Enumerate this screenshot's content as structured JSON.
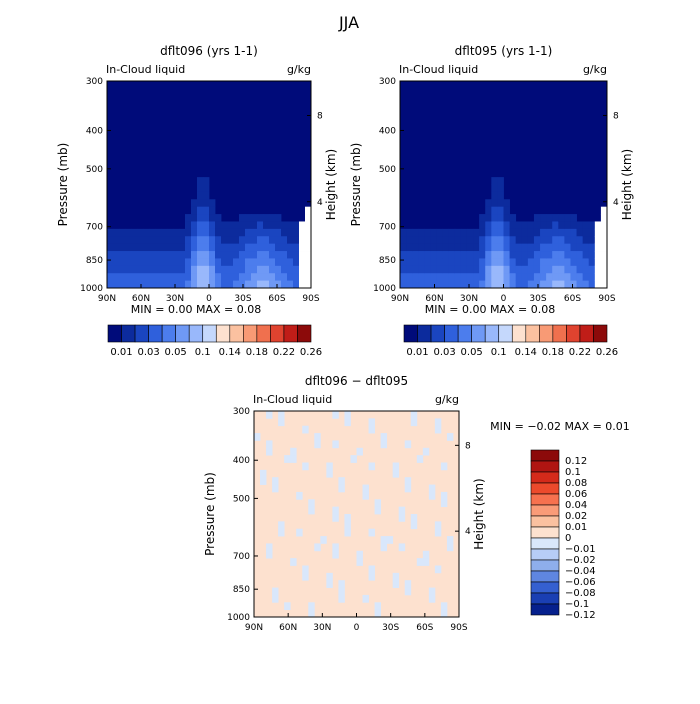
{
  "title": "JJA",
  "colors": {
    "cb_seq": [
      "#000b7a",
      "#0c2b9d",
      "#1a45c0",
      "#2f60dc",
      "#4c7ded",
      "#6f99f5",
      "#99b8fb",
      "#c5d8fc",
      "#fde1cf",
      "#fbc1a0",
      "#f89a75",
      "#f0704e",
      "#e0432f",
      "#c01d18",
      "#8c0a0a"
    ],
    "cb_diff": [
      "#8c0a0a",
      "#b01512",
      "#d42a1a",
      "#ec4a2c",
      "#f6714f",
      "#f99b78",
      "#fbc1a0",
      "#fde1cf",
      "#d9e7fb",
      "#b7cdf6",
      "#8eaeec",
      "#5f86e0",
      "#3560d0",
      "#1a3fb3",
      "#06208d"
    ]
  },
  "chart_data": [
    {
      "type": "heatmap",
      "title": "dflt096 (yrs 1-1)",
      "variable_label": "In-Cloud liquid",
      "units": "g/kg",
      "xlabel": "",
      "ylabel": "Pressure (mb)",
      "y2label": "Height (km)",
      "x_ticks": [
        "90N",
        "60N",
        "30N",
        "0",
        "30S",
        "60S",
        "90S"
      ],
      "y_ticks": [
        300,
        400,
        500,
        700,
        850,
        1000
      ],
      "y2_ticks": [
        8,
        4
      ],
      "ylim": [
        300,
        1000
      ],
      "min_max_text": "MIN =    0.00   MAX =    0.08",
      "colorbar_labels": [
        "0.01",
        "0.03",
        "0.05",
        "0.1",
        "0.14",
        "0.18",
        "0.22",
        "0.26"
      ],
      "field": "seq"
    },
    {
      "type": "heatmap",
      "title": "dflt095 (yrs 1-1)",
      "variable_label": "In-Cloud liquid",
      "units": "g/kg",
      "xlabel": "",
      "ylabel": "Pressure (mb)",
      "y2label": "Height (km)",
      "x_ticks": [
        "90N",
        "60N",
        "30N",
        "0",
        "30S",
        "60S",
        "90S"
      ],
      "y_ticks": [
        300,
        400,
        500,
        700,
        850,
        1000
      ],
      "y2_ticks": [
        8,
        4
      ],
      "ylim": [
        300,
        1000
      ],
      "min_max_text": "MIN =    0.00   MAX =    0.08",
      "colorbar_labels": [
        "0.01",
        "0.03",
        "0.05",
        "0.1",
        "0.14",
        "0.18",
        "0.22",
        "0.26"
      ],
      "field": "seq"
    },
    {
      "type": "heatmap",
      "title": "dflt096 − dflt095",
      "variable_label": "In-Cloud liquid",
      "units": "g/kg",
      "xlabel": "",
      "ylabel": "Pressure (mb)",
      "y2label": "Height (km)",
      "x_ticks": [
        "90N",
        "60N",
        "30N",
        "0",
        "30S",
        "60S",
        "90S"
      ],
      "y_ticks": [
        300,
        400,
        500,
        700,
        850,
        1000
      ],
      "y2_ticks": [
        8,
        4
      ],
      "ylim": [
        300,
        1000
      ],
      "min_max_text": "MIN =   −0.02   MAX =    0.01",
      "colorbar_labels": [
        "0.12",
        "0.1",
        "0.08",
        "0.06",
        "0.04",
        "0.02",
        "0.01",
        "0",
        "−0.01",
        "−0.02",
        "−0.04",
        "−0.06",
        "−0.08",
        "−0.1",
        "−0.12"
      ],
      "field": "diff"
    }
  ]
}
